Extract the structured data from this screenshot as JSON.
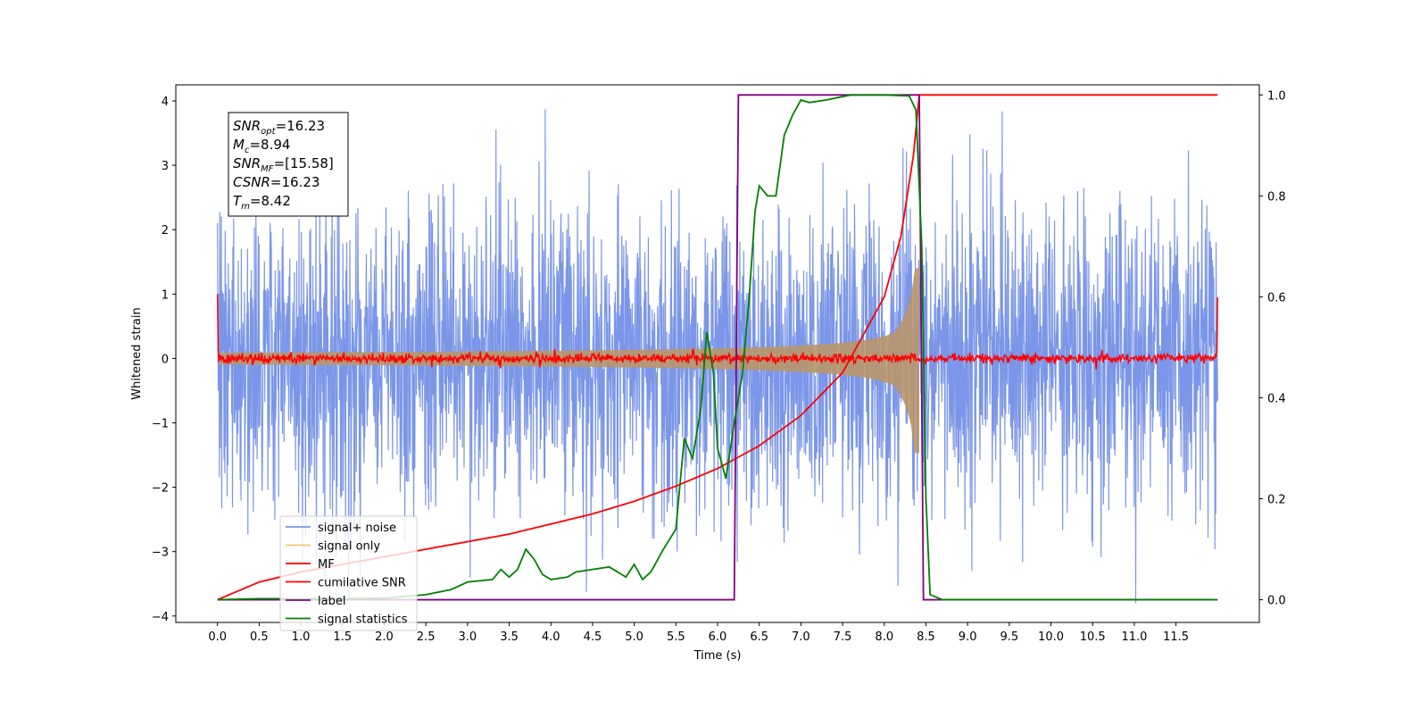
{
  "chart_data": {
    "type": "line",
    "xlabel": "Time (s)",
    "ylabel_left": "Whitened strain",
    "ylabel_right": "",
    "xlim": [
      -0.5,
      12.5
    ],
    "ylim_left": [
      -4.1,
      4.25
    ],
    "ylim_right": [
      -0.045,
      1.02
    ],
    "x_ticks": [
      0.0,
      0.5,
      1.0,
      1.5,
      2.0,
      2.5,
      3.0,
      3.5,
      4.0,
      4.5,
      5.0,
      5.5,
      6.0,
      6.5,
      7.0,
      7.5,
      8.0,
      8.5,
      9.0,
      9.5,
      10.0,
      10.5,
      11.0,
      11.5
    ],
    "x_tick_labels": [
      "0.0",
      "0.5",
      "1.0",
      "1.5",
      "2.0",
      "2.5",
      "3.0",
      "3.5",
      "4.0",
      "4.5",
      "5.0",
      "5.5",
      "6.0",
      "6.5",
      "7.0",
      "7.5",
      "8.0",
      "8.5",
      "9.0",
      "9.5",
      "10.0",
      "10.5",
      "11.0",
      "11.5"
    ],
    "y_ticks_left": [
      -4,
      -3,
      -2,
      -1,
      0,
      1,
      2,
      3,
      4
    ],
    "y_tick_labels_left": [
      "−4",
      "−3",
      "−2",
      "−1",
      "0",
      "1",
      "2",
      "3",
      "4"
    ],
    "y_ticks_right": [
      0.0,
      0.2,
      0.4,
      0.6,
      0.8,
      1.0
    ],
    "y_tick_labels_right": [
      "0.0",
      "0.2",
      "0.4",
      "0.6",
      "0.8",
      "1.0"
    ],
    "grid": false,
    "legend_position": "lower-left",
    "stats_box": {
      "lines": [
        {
          "base": "SNR",
          "sub": "opt",
          "value": "=16.23"
        },
        {
          "base": "M",
          "sub": "c",
          "value": "=8.94"
        },
        {
          "base": "SNR",
          "sub": "MF",
          "value": "=[15.58]"
        },
        {
          "base": "CSNR",
          "sub": "",
          "value": "=16.23"
        },
        {
          "base": "T",
          "sub": "m",
          "value": "=8.42"
        }
      ]
    },
    "series": [
      {
        "name": "signal+ noise",
        "color": "#7b96e8",
        "axis": "left",
        "kind": "noise",
        "duration": 12.0,
        "amplitude_range": [
          -3.8,
          4.15
        ]
      },
      {
        "name": "signal only",
        "color": "#f5c36b",
        "axis": "left",
        "kind": "chirp",
        "merger_time": 8.42,
        "peak_amplitude": 1.4
      },
      {
        "name": "MF",
        "color": "#ff0000",
        "axis": "left",
        "kind": "mf",
        "level": 0.0,
        "start_value": 1.0,
        "end_value": 0.95
      },
      {
        "name": "cumilative SNR",
        "color": "#ff0000",
        "axis": "right",
        "kind": "curve",
        "points": [
          [
            0.0,
            0.0
          ],
          [
            0.5,
            0.035
          ],
          [
            1.0,
            0.055
          ],
          [
            1.5,
            0.07
          ],
          [
            2.0,
            0.085
          ],
          [
            2.5,
            0.1
          ],
          [
            3.0,
            0.115
          ],
          [
            3.5,
            0.13
          ],
          [
            4.0,
            0.15
          ],
          [
            4.5,
            0.17
          ],
          [
            5.0,
            0.195
          ],
          [
            5.5,
            0.225
          ],
          [
            6.0,
            0.26
          ],
          [
            6.5,
            0.305
          ],
          [
            7.0,
            0.365
          ],
          [
            7.5,
            0.45
          ],
          [
            8.0,
            0.6
          ],
          [
            8.2,
            0.72
          ],
          [
            8.35,
            0.88
          ],
          [
            8.42,
            1.0
          ],
          [
            12.0,
            1.0
          ]
        ]
      },
      {
        "name": "label",
        "color": "#800080",
        "axis": "right",
        "kind": "curve",
        "points": [
          [
            0.0,
            0.0
          ],
          [
            6.2,
            0.0
          ],
          [
            6.25,
            1.0
          ],
          [
            8.42,
            1.0
          ],
          [
            8.47,
            0.0
          ],
          [
            11.95,
            0.0
          ]
        ]
      },
      {
        "name": "signal statistics",
        "color": "#008000",
        "axis": "right",
        "kind": "curve",
        "points": [
          [
            0.0,
            0.0
          ],
          [
            0.5,
            0.002
          ],
          [
            1.0,
            0.002
          ],
          [
            1.5,
            0.002
          ],
          [
            2.0,
            0.003
          ],
          [
            2.5,
            0.01
          ],
          [
            2.8,
            0.02
          ],
          [
            3.0,
            0.035
          ],
          [
            3.3,
            0.04
          ],
          [
            3.4,
            0.06
          ],
          [
            3.5,
            0.045
          ],
          [
            3.6,
            0.06
          ],
          [
            3.7,
            0.1
          ],
          [
            3.8,
            0.08
          ],
          [
            3.9,
            0.05
          ],
          [
            4.0,
            0.04
          ],
          [
            4.2,
            0.045
          ],
          [
            4.3,
            0.055
          ],
          [
            4.5,
            0.06
          ],
          [
            4.7,
            0.065
          ],
          [
            4.9,
            0.045
          ],
          [
            5.0,
            0.07
          ],
          [
            5.1,
            0.04
          ],
          [
            5.2,
            0.055
          ],
          [
            5.35,
            0.1
          ],
          [
            5.5,
            0.14
          ],
          [
            5.6,
            0.32
          ],
          [
            5.7,
            0.28
          ],
          [
            5.8,
            0.38
          ],
          [
            5.87,
            0.53
          ],
          [
            5.95,
            0.45
          ],
          [
            6.0,
            0.3
          ],
          [
            6.1,
            0.24
          ],
          [
            6.2,
            0.35
          ],
          [
            6.3,
            0.45
          ],
          [
            6.38,
            0.6
          ],
          [
            6.45,
            0.77
          ],
          [
            6.5,
            0.82
          ],
          [
            6.6,
            0.8
          ],
          [
            6.7,
            0.8
          ],
          [
            6.8,
            0.92
          ],
          [
            6.9,
            0.96
          ],
          [
            7.0,
            0.99
          ],
          [
            7.1,
            0.985
          ],
          [
            7.3,
            0.99
          ],
          [
            7.6,
            1.0
          ],
          [
            8.0,
            1.0
          ],
          [
            8.3,
            0.998
          ],
          [
            8.38,
            0.97
          ],
          [
            8.45,
            0.7
          ],
          [
            8.5,
            0.2
          ],
          [
            8.55,
            0.01
          ],
          [
            8.7,
            0.0
          ],
          [
            12.0,
            0.0
          ]
        ]
      }
    ]
  }
}
